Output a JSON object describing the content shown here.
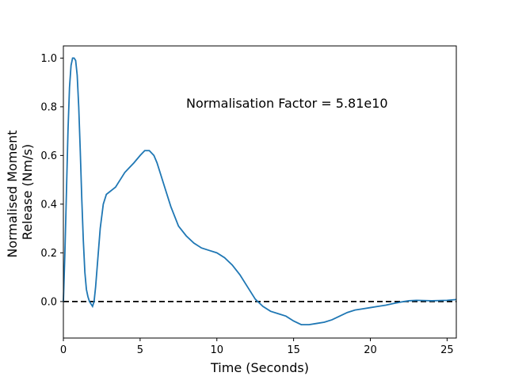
{
  "chart_data": {
    "type": "line",
    "xlabel": "Time (Seconds)",
    "ylabel_lines": [
      "Normalised Moment",
      "Release (Nm/s)"
    ],
    "annotation": "Normalisation Factor = 5.81e10",
    "xlim": [
      0,
      25.6
    ],
    "ylim": [
      -0.15,
      1.05
    ],
    "x_ticks": [
      0,
      5,
      10,
      15,
      20,
      25
    ],
    "x_tick_labels": [
      "0",
      "5",
      "10",
      "15",
      "20",
      "25"
    ],
    "y_ticks": [
      0.0,
      0.2,
      0.4,
      0.6,
      0.8,
      1.0
    ],
    "y_tick_labels": [
      "0.0",
      "0.2",
      "0.4",
      "0.6",
      "0.8",
      "1.0"
    ],
    "reference_line": {
      "y": 0,
      "style": "dashed",
      "color": "#000000"
    },
    "grid": false,
    "series": [
      {
        "color": "#1f77b4",
        "x": [
          0,
          0.1,
          0.2,
          0.3,
          0.4,
          0.5,
          0.6,
          0.7,
          0.8,
          0.9,
          1.0,
          1.1,
          1.2,
          1.3,
          1.4,
          1.5,
          1.6,
          1.7,
          1.8,
          1.9,
          2.0,
          2.1,
          2.2,
          2.4,
          2.6,
          2.8,
          3.0,
          3.2,
          3.4,
          3.6,
          3.8,
          4.0,
          4.3,
          4.6,
          5.0,
          5.3,
          5.6,
          5.9,
          6.1,
          6.3,
          6.6,
          7.0,
          7.5,
          8.0,
          8.5,
          9.0,
          9.5,
          10.0,
          10.5,
          11.0,
          11.5,
          12.0,
          12.5,
          13.0,
          13.5,
          14.0,
          14.5,
          15.0,
          15.5,
          16.0,
          16.5,
          17.0,
          17.5,
          18.0,
          18.5,
          19.0,
          19.5,
          20.0,
          20.5,
          21.0,
          21.5,
          22.0,
          22.5,
          23.0,
          23.5,
          24.0,
          24.5,
          25.0,
          25.6
        ],
        "y": [
          0.0,
          0.2,
          0.45,
          0.7,
          0.88,
          0.97,
          1.0,
          1.0,
          0.99,
          0.93,
          0.8,
          0.62,
          0.42,
          0.25,
          0.12,
          0.05,
          0.02,
          0.0,
          -0.01,
          -0.02,
          0.0,
          0.06,
          0.14,
          0.3,
          0.4,
          0.44,
          0.45,
          0.46,
          0.47,
          0.49,
          0.51,
          0.53,
          0.55,
          0.57,
          0.6,
          0.62,
          0.62,
          0.6,
          0.57,
          0.53,
          0.47,
          0.39,
          0.31,
          0.27,
          0.24,
          0.22,
          0.21,
          0.2,
          0.18,
          0.15,
          0.11,
          0.06,
          0.01,
          -0.02,
          -0.04,
          -0.05,
          -0.06,
          -0.08,
          -0.095,
          -0.095,
          -0.09,
          -0.085,
          -0.075,
          -0.06,
          -0.045,
          -0.035,
          -0.03,
          -0.025,
          -0.02,
          -0.015,
          -0.008,
          -0.002,
          0.003,
          0.005,
          0.004,
          0.003,
          0.004,
          0.005,
          0.008
        ]
      }
    ]
  }
}
